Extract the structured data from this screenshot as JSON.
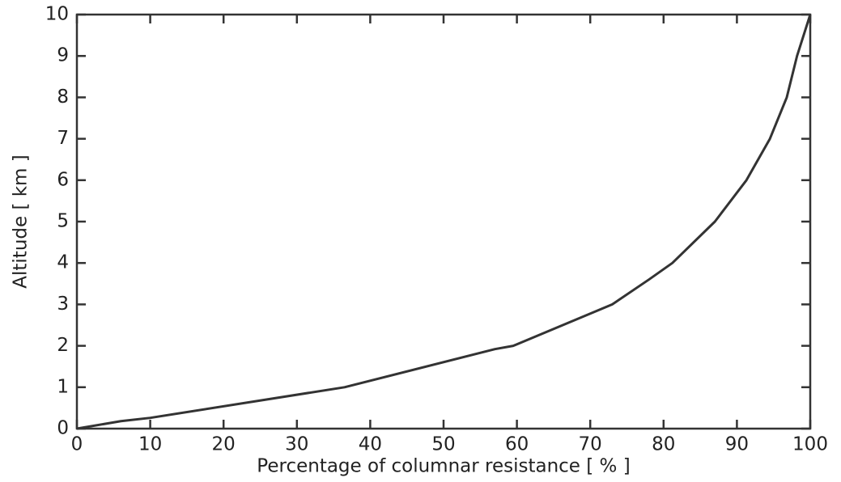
{
  "chart_data": {
    "type": "line",
    "xlabel": "Percentage of columnar resistance [ % ]",
    "ylabel": "Altitude [ km ]",
    "x": [
      0,
      6,
      10,
      36.5,
      57,
      59.5,
      73,
      78,
      81.2,
      87,
      91.3,
      94.5,
      96.8,
      98.2,
      100
    ],
    "values": [
      0,
      0.18,
      0.26,
      1,
      1.92,
      2,
      3,
      3.6,
      4,
      5,
      6,
      7,
      8,
      9,
      10
    ],
    "color": "#333333",
    "xlim": [
      0,
      100
    ],
    "ylim": [
      0,
      10
    ],
    "xticks": [
      0,
      10,
      20,
      30,
      40,
      50,
      60,
      70,
      80,
      90,
      100
    ],
    "yticks": [
      0,
      1,
      2,
      3,
      4,
      5,
      6,
      7,
      8,
      9,
      10
    ],
    "grid": false
  }
}
